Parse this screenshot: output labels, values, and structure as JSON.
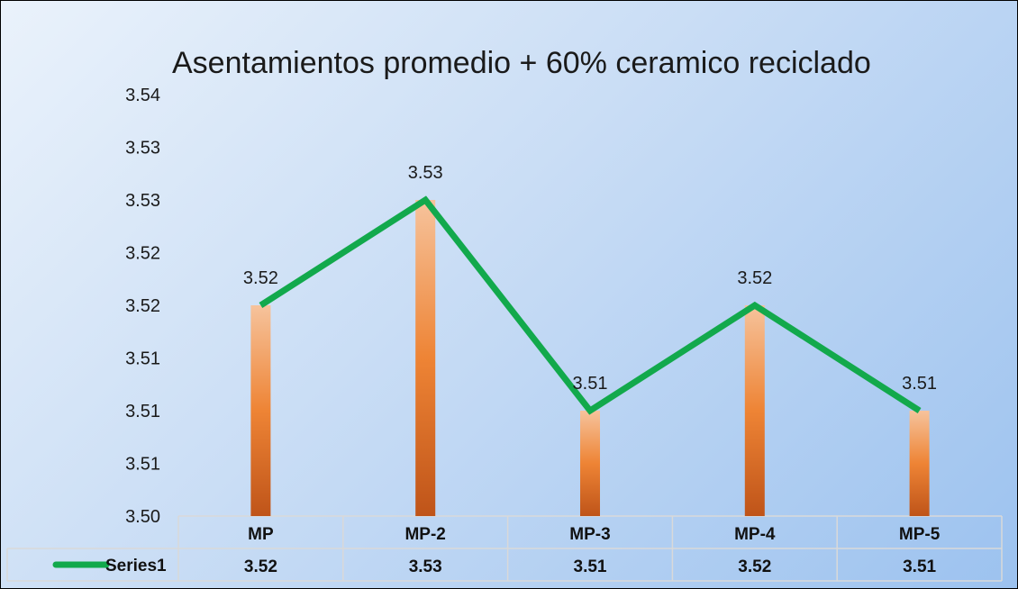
{
  "chart_data": {
    "type": "bar+line",
    "title": "Asentamientos promedio + 60% ceramico reciclado",
    "categories": [
      "MP",
      "MP-2",
      "MP-3",
      "MP-4",
      "MP-5"
    ],
    "series": [
      {
        "name": "Series1",
        "values": [
          3.52,
          3.53,
          3.51,
          3.52,
          3.51
        ]
      }
    ],
    "value_labels": [
      "3.52",
      "3.53",
      "3.51",
      "3.52",
      "3.51"
    ],
    "table_values": [
      "3.52",
      "3.53",
      "3.51",
      "3.52",
      "3.51"
    ],
    "y_ticks": [
      "3.50",
      "3.51",
      "3.51",
      "3.51",
      "3.52",
      "3.52",
      "3.53",
      "3.53",
      "3.54"
    ],
    "ylim": [
      3.5,
      3.54
    ],
    "data_table": true,
    "colors": {
      "line": "#12a94c",
      "bar_light": "#f4b88b",
      "bar_mid": "#ee8435",
      "bar_dark": "#c0561a",
      "grid_border": "#d9d9d9"
    }
  }
}
